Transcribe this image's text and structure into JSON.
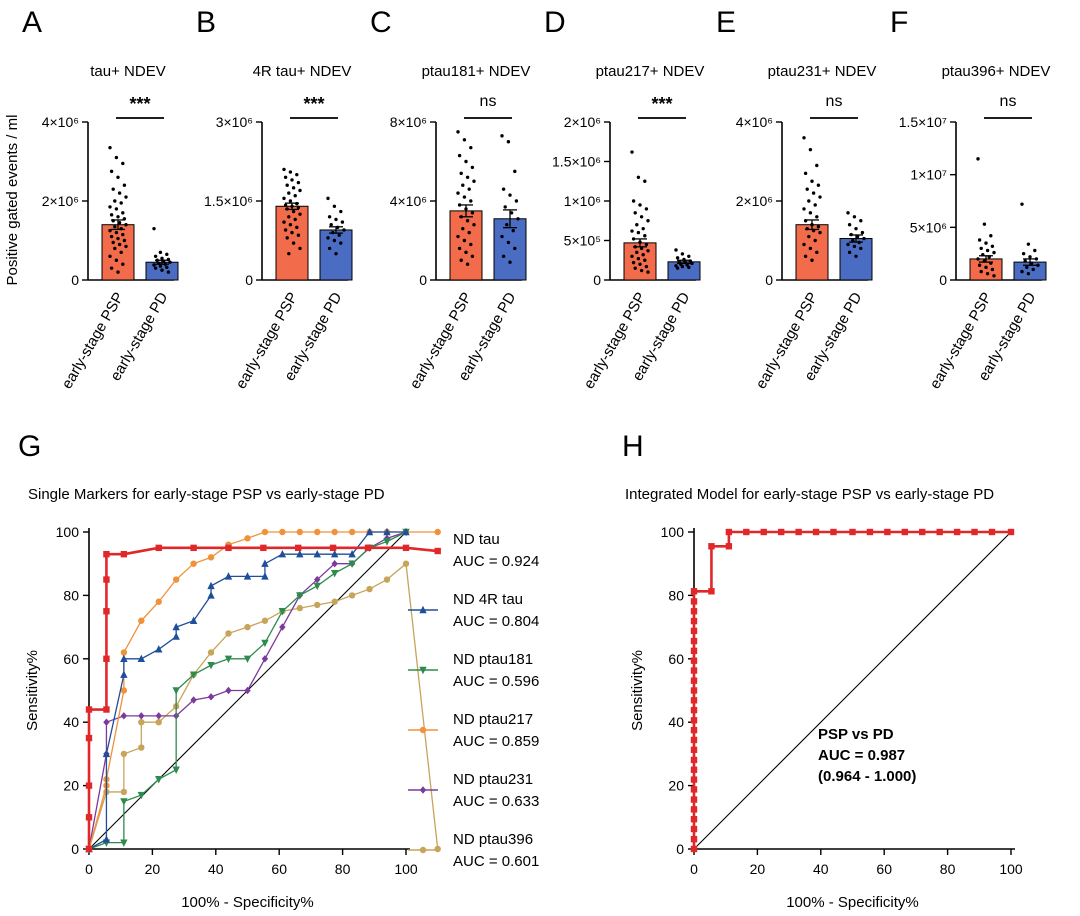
{
  "figure": {
    "colors": {
      "psp_bar": "#f26b4a",
      "pd_bar": "#4a6cc2",
      "text": "#000000"
    },
    "bar_group_categories": [
      "early-stage PSP",
      "early-stage PD"
    ],
    "bar_group_ylabel": "Positive gated events / ml"
  },
  "chart_data": [
    {
      "panel": "A",
      "type": "bar",
      "title": "tau+ NDEV",
      "categories": [
        "early-stage PSP",
        "early-stage PD"
      ],
      "values": [
        1400000,
        450000
      ],
      "sem": [
        120000,
        50000
      ],
      "ylim": [
        0,
        4000000
      ],
      "yticks": [
        {
          "v": 0,
          "label": "0"
        },
        {
          "v": 2000000,
          "label": "2×10⁶"
        },
        {
          "v": 4000000,
          "label": "4×10⁶"
        }
      ],
      "significance": "***",
      "points_psp": [
        3350000,
        3100000,
        2950000,
        2750000,
        2600000,
        2400000,
        2300000,
        2200000,
        2100000,
        2000000,
        1950000,
        1850000,
        1800000,
        1700000,
        1650000,
        1600000,
        1550000,
        1500000,
        1450000,
        1400000,
        1350000,
        1300000,
        1250000,
        1200000,
        1150000,
        1100000,
        1050000,
        1000000,
        950000,
        900000,
        850000,
        800000,
        700000,
        600000,
        500000,
        400000,
        300000,
        200000
      ],
      "points_pd": [
        1300000,
        700000,
        650000,
        600000,
        550000,
        520000,
        500000,
        480000,
        450000,
        420000,
        400000,
        380000,
        350000,
        320000,
        300000,
        250000,
        200000
      ]
    },
    {
      "panel": "B",
      "type": "bar",
      "title": "4R tau+ NDEV",
      "categories": [
        "early-stage PSP",
        "early-stage PD"
      ],
      "values": [
        1400000,
        950000
      ],
      "sem": [
        60000,
        60000
      ],
      "ylim": [
        0,
        3000000
      ],
      "yticks": [
        {
          "v": 0,
          "label": "0"
        },
        {
          "v": 1500000,
          "label": "1.5×10⁶"
        },
        {
          "v": 3000000,
          "label": "3×10⁶"
        }
      ],
      "significance": "***",
      "points_psp": [
        2100000,
        2050000,
        2000000,
        1950000,
        1900000,
        1850000,
        1800000,
        1750000,
        1700000,
        1650000,
        1600000,
        1550000,
        1500000,
        1450000,
        1420000,
        1400000,
        1380000,
        1350000,
        1300000,
        1250000,
        1200000,
        1150000,
        1100000,
        1050000,
        1000000,
        950000,
        900000,
        850000,
        800000,
        700000,
        600000,
        500000
      ],
      "points_pd": [
        1550000,
        1400000,
        1300000,
        1200000,
        1150000,
        1100000,
        1050000,
        1000000,
        950000,
        900000,
        850000,
        800000,
        750000,
        700000,
        600000,
        500000
      ]
    },
    {
      "panel": "C",
      "type": "bar",
      "title": "ptau181+ NDEV",
      "categories": [
        "early-stage PSP",
        "early-stage PD"
      ],
      "values": [
        3500000,
        3100000
      ],
      "sem": [
        300000,
        450000
      ],
      "ylim": [
        0,
        8000000
      ],
      "yticks": [
        {
          "v": 0,
          "label": "0"
        },
        {
          "v": 4000000,
          "label": "4×10⁶"
        },
        {
          "v": 8000000,
          "label": "8×10⁶"
        }
      ],
      "significance": "ns",
      "points_psp": [
        7500000,
        7100000,
        6700000,
        6300000,
        6000000,
        5700000,
        5400000,
        5200000,
        5000000,
        4800000,
        4600000,
        4400000,
        4200000,
        4000000,
        3800000,
        3600000,
        3400000,
        3200000,
        3000000,
        2800000,
        2600000,
        2400000,
        2200000,
        2000000,
        1800000,
        1600000,
        1400000,
        1200000,
        1000000,
        800000
      ],
      "points_pd": [
        7300000,
        7000000,
        5500000,
        4600000,
        4300000,
        4000000,
        3700000,
        3400000,
        3100000,
        2800000,
        2500000,
        2200000,
        1900000,
        1600000,
        1200000,
        900000
      ]
    },
    {
      "panel": "D",
      "type": "bar",
      "title": "ptau217+ NDEV",
      "categories": [
        "early-stage PSP",
        "early-stage PD"
      ],
      "values": [
        470000,
        230000
      ],
      "sem": [
        50000,
        20000
      ],
      "ylim": [
        0,
        2000000
      ],
      "yticks": [
        {
          "v": 0,
          "label": "0"
        },
        {
          "v": 500000,
          "label": "5×10⁵"
        },
        {
          "v": 1000000,
          "label": "1×10⁶"
        },
        {
          "v": 1500000,
          "label": "1.5×10⁶"
        },
        {
          "v": 2000000,
          "label": "2×10⁶"
        }
      ],
      "significance": "***",
      "points_psp": [
        1620000,
        1300000,
        1250000,
        1000000,
        950000,
        900000,
        850000,
        800000,
        750000,
        700000,
        650000,
        620000,
        600000,
        560000,
        520000,
        480000,
        450000,
        420000,
        400000,
        370000,
        350000,
        320000,
        300000,
        270000,
        250000,
        220000,
        200000,
        170000,
        150000,
        120000,
        100000
      ],
      "points_pd": [
        380000,
        330000,
        300000,
        280000,
        260000,
        240000,
        230000,
        220000,
        210000,
        200000,
        190000,
        180000,
        170000,
        160000,
        150000
      ]
    },
    {
      "panel": "E",
      "type": "bar",
      "title": "ptau231+ NDEV",
      "categories": [
        "early-stage PSP",
        "early-stage PD"
      ],
      "values": [
        1400000,
        1050000
      ],
      "sem": [
        120000,
        90000
      ],
      "ylim": [
        0,
        4000000
      ],
      "yticks": [
        {
          "v": 0,
          "label": "0"
        },
        {
          "v": 2000000,
          "label": "2×10⁶"
        },
        {
          "v": 4000000,
          "label": "4×10⁶"
        }
      ],
      "significance": "ns",
      "points_psp": [
        3600000,
        3300000,
        2900000,
        2700000,
        2500000,
        2400000,
        2300000,
        2200000,
        2100000,
        2000000,
        1900000,
        1800000,
        1700000,
        1600000,
        1500000,
        1400000,
        1350000,
        1300000,
        1250000,
        1200000,
        1100000,
        1000000,
        900000,
        800000,
        700000,
        600000,
        500000
      ],
      "points_pd": [
        1700000,
        1600000,
        1500000,
        1400000,
        1300000,
        1200000,
        1150000,
        1100000,
        1050000,
        1000000,
        950000,
        900000,
        850000,
        800000,
        700000,
        600000
      ]
    },
    {
      "panel": "F",
      "type": "bar",
      "title": "ptau396+ NDEV",
      "categories": [
        "early-stage PSP",
        "early-stage PD"
      ],
      "values": [
        2000000,
        1700000
      ],
      "sem": [
        300000,
        300000
      ],
      "ylim": [
        0,
        15000000
      ],
      "yticks": [
        {
          "v": 0,
          "label": "0"
        },
        {
          "v": 5000000,
          "label": "5×10⁶"
        },
        {
          "v": 10000000,
          "label": "1×10⁷"
        },
        {
          "v": 15000000,
          "label": "1.5×10⁷"
        }
      ],
      "significance": "ns",
      "points_psp": [
        11500000,
        5300000,
        4200000,
        3800000,
        3500000,
        3200000,
        3000000,
        2800000,
        2600000,
        2400000,
        2200000,
        2000000,
        1800000,
        1600000,
        1400000,
        1200000,
        1000000,
        800000,
        600000,
        400000
      ],
      "points_pd": [
        7200000,
        3400000,
        2800000,
        2500000,
        2200000,
        2000000,
        1800000,
        1600000,
        1400000,
        1200000,
        1000000,
        800000,
        600000
      ]
    },
    {
      "panel": "G",
      "type": "line",
      "title": "Single Markers for early-stage PSP vs early-stage PD",
      "xlabel": "100% - Specificity%",
      "ylabel": "Sensitivity%",
      "xlim": [
        0,
        100
      ],
      "ylim": [
        0,
        100
      ],
      "xticks": [
        0,
        20,
        40,
        60,
        80,
        100
      ],
      "yticks": [
        0,
        20,
        40,
        60,
        80,
        100
      ],
      "series": [
        {
          "name": "ND tau",
          "auc": "AUC = 0.924",
          "color": "#e0282b",
          "marker": "square",
          "x": [
            0,
            0,
            0,
            0,
            0,
            5.5,
            5.5,
            5.5,
            5.5,
            5.5,
            11,
            22,
            33,
            44,
            55,
            66,
            77,
            88,
            100,
            110
          ],
          "y": [
            0,
            10,
            20,
            35,
            44,
            44,
            60,
            75,
            85,
            93,
            93,
            95,
            95,
            95,
            95,
            95,
            95,
            95,
            95,
            94
          ]
        },
        {
          "name": "ND 4R tau",
          "auc": "AUC = 0.804",
          "color": "#1f4e9a",
          "marker": "triangle-up",
          "x": [
            0,
            5.5,
            5.5,
            11,
            11,
            16.5,
            22,
            27.5,
            27.5,
            33,
            38.5,
            38.5,
            44,
            50,
            55.5,
            55.5,
            61,
            66.5,
            72,
            77.5,
            83,
            88.5,
            94,
            100
          ],
          "y": [
            0,
            3,
            30,
            55,
            60,
            60,
            63,
            67,
            70,
            72,
            80,
            83,
            86,
            86,
            86,
            90,
            93,
            93,
            93,
            93,
            93,
            100,
            100,
            100
          ]
        },
        {
          "name": "ND ptau181",
          "auc": "AUC = 0.596",
          "color": "#2e8b4e",
          "marker": "triangle-down",
          "x": [
            0,
            5.5,
            11,
            11,
            16.5,
            22,
            27.5,
            27.5,
            33,
            38.5,
            44,
            50,
            55.5,
            61,
            66.5,
            72,
            77.5,
            83,
            88.5,
            94,
            100
          ],
          "y": [
            0,
            2,
            2,
            15,
            17,
            22,
            25,
            50,
            55,
            58,
            60,
            60,
            65,
            75,
            80,
            83,
            87,
            90,
            95,
            97,
            100
          ]
        },
        {
          "name": "ND ptau217",
          "auc": "AUC = 0.859",
          "color": "#f0923a",
          "marker": "circle",
          "x": [
            0,
            5.5,
            5.5,
            11,
            11,
            16.5,
            22,
            27.5,
            33,
            38.5,
            44,
            50,
            55.5,
            61,
            66.5,
            72,
            77.5,
            83,
            88.5,
            94,
            100,
            110
          ],
          "y": [
            0,
            20,
            22,
            50,
            62,
            72,
            78,
            85,
            90,
            92,
            96,
            98,
            100,
            100,
            100,
            100,
            100,
            100,
            100,
            100,
            100,
            100
          ]
        },
        {
          "name": "ND ptau231",
          "auc": "AUC = 0.633",
          "color": "#7b3a9c",
          "marker": "diamond",
          "x": [
            0,
            5.5,
            5.5,
            11,
            16.5,
            22,
            27.5,
            33,
            38.5,
            44,
            50,
            55.5,
            61,
            66.5,
            72,
            77.5,
            83,
            88.5,
            94,
            100
          ],
          "y": [
            0,
            30,
            40,
            42,
            42,
            42,
            42,
            47,
            48,
            50,
            50,
            60,
            70,
            80,
            85,
            90,
            90,
            95,
            98,
            100
          ]
        },
        {
          "name": "ND ptau396",
          "auc": "AUC = 0.601",
          "color": "#c8a45a",
          "marker": "circle",
          "x": [
            0,
            5.5,
            11,
            11,
            16.5,
            16.5,
            22,
            27.5,
            33,
            38.5,
            44,
            50,
            55.5,
            61,
            66.5,
            72,
            77.5,
            83,
            88.5,
            94,
            100,
            110
          ],
          "y": [
            0,
            18,
            18,
            30,
            32,
            40,
            40,
            45,
            55,
            62,
            68,
            70,
            72,
            75,
            76,
            77,
            78,
            80,
            82,
            85,
            90,
            0
          ]
        }
      ]
    },
    {
      "panel": "H",
      "type": "line",
      "title": "Integrated Model for early-stage PSP vs early-stage PD",
      "xlabel": "100% - Specificity%",
      "ylabel": "Sensitivity%",
      "xlim": [
        0,
        100
      ],
      "ylim": [
        0,
        100
      ],
      "xticks": [
        0,
        20,
        40,
        60,
        80,
        100
      ],
      "yticks": [
        0,
        20,
        40,
        60,
        80,
        100
      ],
      "annotation": [
        "PSP vs PD",
        "AUC = 0.987",
        "(0.964 - 1.000)"
      ],
      "series": [
        {
          "name": "PSP vs PD",
          "color": "#e0282b",
          "marker": "square",
          "x": [
            0,
            0,
            0,
            0,
            0,
            0,
            0,
            0,
            0,
            0,
            0,
            0,
            0,
            0,
            0,
            0,
            0,
            0,
            0,
            0,
            0,
            0,
            0,
            0,
            0,
            0,
            0,
            5.5,
            5.5,
            11,
            11,
            16.5,
            22,
            27.5,
            33,
            38.5,
            44,
            50,
            55.5,
            61,
            66.5,
            72,
            77.5,
            83,
            88.5,
            94,
            100
          ],
          "y": [
            0,
            3.1,
            6.3,
            9.4,
            12.5,
            15.6,
            18.8,
            21.9,
            25,
            28.1,
            31.3,
            34.4,
            37.5,
            40.6,
            43.8,
            46.9,
            50,
            53.1,
            56.3,
            59.4,
            62.5,
            65.6,
            68.8,
            71.9,
            75,
            78.1,
            81.3,
            81.3,
            95.5,
            95.5,
            100,
            100,
            100,
            100,
            100,
            100,
            100,
            100,
            100,
            100,
            100,
            100,
            100,
            100,
            100,
            100,
            100
          ]
        }
      ]
    }
  ]
}
